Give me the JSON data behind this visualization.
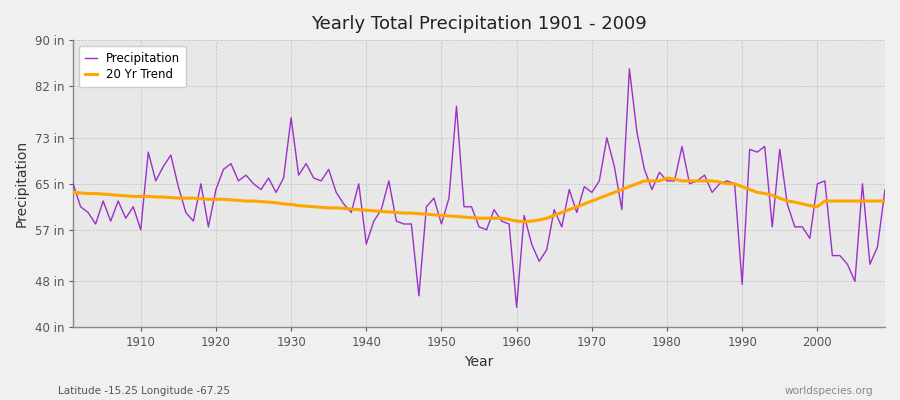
{
  "title": "Yearly Total Precipitation 1901 - 2009",
  "xlabel": "Year",
  "ylabel": "Precipitation",
  "subtitle": "Latitude -15.25 Longitude -67.25",
  "watermark": "worldspecies.org",
  "ylim": [
    40,
    90
  ],
  "yticks": [
    40,
    48,
    57,
    65,
    73,
    82,
    90
  ],
  "ytick_labels": [
    "40 in",
    "48 in",
    "57 in",
    "65 in",
    "73 in",
    "82 in",
    "90 in"
  ],
  "xlim": [
    1901,
    2009
  ],
  "xticks": [
    1910,
    1920,
    1930,
    1940,
    1950,
    1960,
    1970,
    1980,
    1990,
    2000
  ],
  "precip_color": "#9B30C8",
  "trend_color": "#FFA500",
  "bg_color": "#F0F0F0",
  "plot_bg_color": "#E8E8E8",
  "legend_labels": [
    "Precipitation",
    "20 Yr Trend"
  ],
  "years": [
    1901,
    1902,
    1903,
    1904,
    1905,
    1906,
    1907,
    1908,
    1909,
    1910,
    1911,
    1912,
    1913,
    1914,
    1915,
    1916,
    1917,
    1918,
    1919,
    1920,
    1921,
    1922,
    1923,
    1924,
    1925,
    1926,
    1927,
    1928,
    1929,
    1930,
    1931,
    1932,
    1933,
    1934,
    1935,
    1936,
    1937,
    1938,
    1939,
    1940,
    1941,
    1942,
    1943,
    1944,
    1945,
    1946,
    1947,
    1948,
    1949,
    1950,
    1951,
    1952,
    1953,
    1954,
    1955,
    1956,
    1957,
    1958,
    1959,
    1960,
    1961,
    1962,
    1963,
    1964,
    1965,
    1966,
    1967,
    1968,
    1969,
    1970,
    1971,
    1972,
    1973,
    1974,
    1975,
    1976,
    1977,
    1978,
    1979,
    1980,
    1981,
    1982,
    1983,
    1984,
    1985,
    1986,
    1987,
    1988,
    1989,
    1990,
    1991,
    1992,
    1993,
    1994,
    1995,
    1996,
    1997,
    1998,
    1999,
    2000,
    2001,
    2002,
    2003,
    2004,
    2005,
    2006,
    2007,
    2008,
    2009
  ],
  "precip": [
    65.0,
    61.0,
    60.0,
    58.0,
    62.0,
    58.5,
    62.0,
    59.0,
    61.0,
    57.0,
    70.5,
    65.5,
    68.0,
    70.0,
    64.5,
    60.0,
    58.5,
    65.0,
    57.5,
    64.0,
    67.5,
    68.5,
    65.5,
    66.5,
    65.0,
    64.0,
    66.0,
    63.5,
    66.0,
    76.5,
    66.5,
    68.5,
    66.0,
    65.5,
    67.5,
    63.5,
    61.5,
    60.0,
    65.0,
    54.5,
    58.5,
    60.5,
    65.5,
    58.5,
    58.0,
    58.0,
    45.5,
    61.0,
    62.5,
    58.0,
    62.5,
    78.5,
    61.0,
    61.0,
    57.5,
    57.0,
    60.5,
    58.5,
    58.0,
    43.5,
    59.5,
    54.5,
    51.5,
    53.5,
    60.5,
    57.5,
    64.0,
    60.0,
    64.5,
    63.5,
    65.5,
    73.0,
    68.0,
    60.5,
    85.0,
    74.0,
    67.5,
    64.0,
    67.0,
    65.5,
    65.5,
    71.5,
    65.0,
    65.5,
    66.5,
    63.5,
    65.0,
    65.5,
    65.0,
    47.5,
    71.0,
    70.5,
    71.5,
    57.5,
    71.0,
    61.5,
    57.5,
    57.5,
    55.5,
    65.0,
    65.5,
    52.5,
    52.5,
    51.0,
    48.0,
    65.0,
    51.0,
    54.0,
    64.0
  ],
  "trend": [
    63.5,
    63.4,
    63.3,
    63.3,
    63.2,
    63.1,
    63.0,
    62.9,
    62.8,
    62.8,
    62.8,
    62.7,
    62.7,
    62.6,
    62.5,
    62.5,
    62.5,
    62.4,
    62.3,
    62.3,
    62.3,
    62.2,
    62.1,
    62.0,
    62.0,
    61.9,
    61.8,
    61.7,
    61.5,
    61.4,
    61.2,
    61.1,
    61.0,
    60.9,
    60.8,
    60.8,
    60.7,
    60.6,
    60.5,
    60.4,
    60.3,
    60.2,
    60.1,
    60.0,
    59.9,
    59.9,
    59.8,
    59.7,
    59.6,
    59.5,
    59.4,
    59.3,
    59.2,
    59.1,
    59.0,
    59.0,
    59.0,
    59.0,
    58.8,
    58.5,
    58.4,
    58.5,
    58.7,
    59.0,
    59.5,
    60.0,
    60.5,
    61.0,
    61.5,
    62.0,
    62.5,
    63.0,
    63.5,
    64.0,
    64.5,
    65.0,
    65.5,
    65.5,
    65.5,
    66.0,
    65.8,
    65.5,
    65.5,
    65.5,
    65.5,
    65.5,
    65.3,
    65.0,
    65.0,
    64.5,
    64.0,
    63.5,
    63.3,
    63.0,
    62.5,
    62.0,
    61.8,
    61.5,
    61.2,
    61.0,
    62.0,
    62.0,
    62.0,
    62.0,
    62.0,
    62.0,
    62.0,
    62.0,
    62.0
  ]
}
